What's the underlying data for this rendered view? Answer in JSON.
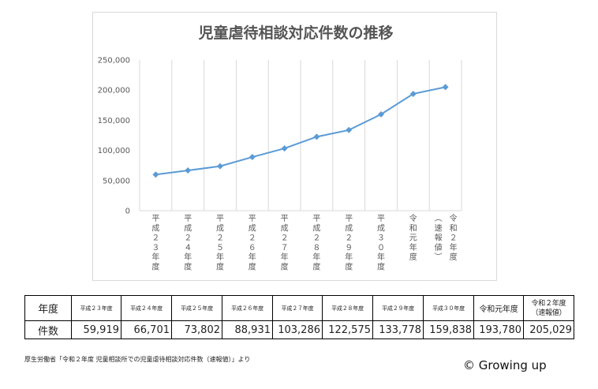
{
  "chart_data": {
    "type": "line",
    "title": "児童虐待相談対応件数の推移",
    "xlabel": "",
    "ylabel": "",
    "ylim": [
      0,
      250000
    ],
    "yticks": [
      "0",
      "50,000",
      "100,000",
      "150,000",
      "200,000",
      "250,000"
    ],
    "grid": "vertical",
    "legend": "none",
    "color": "#5b9bd5",
    "categories": [
      "平成23年度",
      "平成24年度",
      "平成25年度",
      "平成26年度",
      "平成27年度",
      "平成28年度",
      "平成29年度",
      "平成30年度",
      "令和元年度",
      "令和2年度（速報値）"
    ],
    "category_labels": [
      [
        "平",
        "成",
        "２",
        "３",
        "年",
        "度"
      ],
      [
        "平",
        "成",
        "２",
        "４",
        "年",
        "度"
      ],
      [
        "平",
        "成",
        "２",
        "５",
        "年",
        "度"
      ],
      [
        "平",
        "成",
        "２",
        "６",
        "年",
        "度"
      ],
      [
        "平",
        "成",
        "２",
        "７",
        "年",
        "度"
      ],
      [
        "平",
        "成",
        "２",
        "８",
        "年",
        "度"
      ],
      [
        "平",
        "成",
        "２",
        "９",
        "年",
        "度"
      ],
      [
        "平",
        "成",
        "３",
        "０",
        "年",
        "度"
      ],
      [
        "令",
        "和",
        "元",
        "年",
        "度"
      ],
      [
        "︵",
        "速",
        "報",
        "値",
        "︶"
      ]
    ],
    "last_category_extra": [
      "令",
      "和",
      "２",
      "年",
      "度"
    ],
    "values": [
      59919,
      66701,
      73802,
      88931,
      103286,
      122575,
      133778,
      159838,
      193780,
      205029
    ]
  },
  "table": {
    "row_label_year": "年度",
    "row_label_count": "件数",
    "years": [
      "平成２３年度",
      "平成２４年度",
      "平成２５年度",
      "平成２６年度",
      "平成２７年度",
      "平成２８年度",
      "平成２９年度",
      "平成３０年度",
      "令和元年度",
      "令和２年度",
      "（速報値）"
    ],
    "counts": [
      "59,919",
      "66,701",
      "73,802",
      "88,931",
      "103,286",
      "122,575",
      "133,778",
      "159,838",
      "193,780",
      "205,029"
    ]
  },
  "source_note": "厚生労働省「令和２年度 児童相談所での児童虐待相談対応件数（速報値）」より",
  "copyright": "© Growing up"
}
